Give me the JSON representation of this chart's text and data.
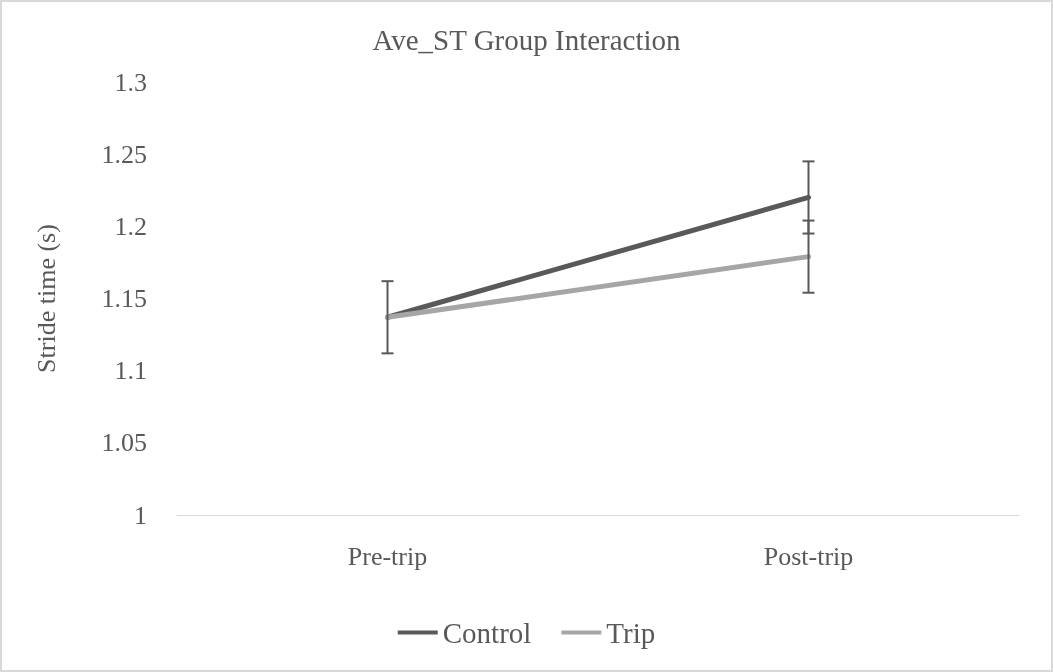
{
  "chart_data": {
    "type": "line",
    "title": "Ave_ST Group Interaction",
    "ylabel": "Stride time (s)",
    "categories": [
      "Pre-trip",
      "Post-trip"
    ],
    "series": [
      {
        "name": "Control",
        "color": "#595959",
        "values": [
          1.137,
          1.22
        ],
        "errors": [
          0.025,
          0.025
        ]
      },
      {
        "name": "Trip",
        "color": "#a6a6a6",
        "values": [
          1.137,
          1.179
        ],
        "errors": [
          null,
          0.025
        ]
      }
    ],
    "ylim": [
      1,
      1.3
    ],
    "yticks": [
      1,
      1.05,
      1.1,
      1.15,
      1.2,
      1.25,
      1.3
    ],
    "grid": false,
    "legend": "bottom",
    "marker": "none",
    "line_style": "solid"
  }
}
